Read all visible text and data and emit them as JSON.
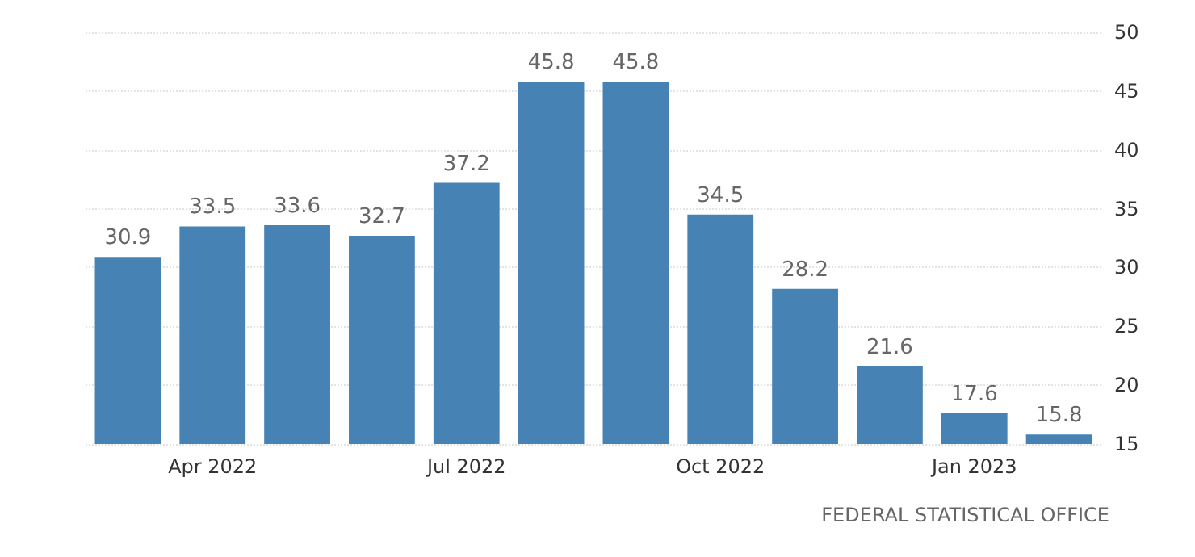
{
  "chart_data": {
    "type": "bar",
    "categories": [
      null,
      "Apr 2022",
      null,
      null,
      "Jul 2022",
      null,
      null,
      "Oct 2022",
      null,
      null,
      "Jan 2023",
      null
    ],
    "values": [
      30.9,
      33.5,
      33.6,
      32.7,
      37.2,
      45.8,
      45.8,
      34.5,
      28.2,
      21.6,
      17.6,
      15.8
    ],
    "color": "#4682b4",
    "ylim": [
      15,
      50
    ],
    "yticks": [
      15,
      20,
      25,
      30,
      35,
      40,
      45,
      50
    ],
    "grid": "y",
    "data_labels": true,
    "annotations": [
      "FEDERAL STATISTICAL OFFICE"
    ]
  }
}
